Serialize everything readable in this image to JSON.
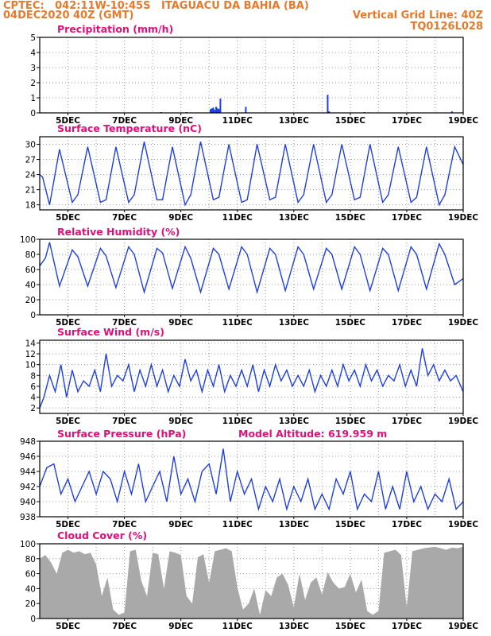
{
  "header": {
    "line1": "CPTEC:   042:11W-10:45S   ITAGUACU DA BAHIA (BA)",
    "line2": "04DEC2020 40Z (GMT)",
    "grid_note": "Vertical Grid Line: 40Z",
    "model_code": "TQ0126L028"
  },
  "colors": {
    "header": "#e8792b",
    "title": "#e0107a",
    "series": "#1f3fe0",
    "cloud": "#a9a9a9",
    "grid": "#9a9a9a"
  },
  "chart_data": [
    {
      "type": "bar",
      "title": "Precipitation (mm/h)",
      "ylim": [
        0,
        5
      ],
      "yticks": [
        0,
        1,
        2,
        3,
        4,
        5
      ],
      "xticks": [
        "5DEC",
        "7DEC",
        "9DEC",
        "11DEC",
        "13DEC",
        "15DEC",
        "17DEC",
        "19DEC"
      ],
      "xlim_days": [
        4.0,
        19.0
      ],
      "series": [
        {
          "x": [
            8.3,
            9.2,
            10.05,
            10.1,
            10.15,
            10.2,
            10.25,
            10.3,
            10.35,
            10.4,
            11.3,
            14.2,
            14.25,
            15.5,
            18.6
          ],
          "values": [
            0.05,
            0.05,
            0.25,
            0.3,
            0.35,
            0.2,
            0.4,
            0.3,
            0.25,
            0.95,
            0.4,
            1.2,
            0.1,
            0.05,
            0.1
          ]
        }
      ]
    },
    {
      "type": "line",
      "title": "Surface Temperature (nC)",
      "ylim": [
        17,
        31.5
      ],
      "yticks": [
        18,
        21,
        24,
        27,
        30
      ],
      "xticks": [
        "5DEC",
        "7DEC",
        "9DEC",
        "11DEC",
        "13DEC",
        "15DEC",
        "17DEC",
        "19DEC"
      ],
      "xlim_days": [
        4.0,
        19.0
      ],
      "series": [
        {
          "x": [
            4.0,
            4.1,
            4.35,
            4.7,
            5.15,
            5.35,
            5.7,
            6.15,
            6.35,
            6.7,
            7.15,
            7.35,
            7.7,
            8.15,
            8.35,
            8.7,
            9.15,
            9.35,
            9.7,
            10.15,
            10.35,
            10.7,
            11.15,
            11.35,
            11.7,
            12.15,
            12.35,
            12.7,
            13.15,
            13.35,
            13.7,
            14.15,
            14.35,
            14.7,
            15.15,
            15.35,
            15.7,
            16.15,
            16.35,
            16.7,
            17.15,
            17.35,
            17.7,
            18.15,
            18.35,
            18.7,
            19.0
          ],
          "values": [
            24,
            23.5,
            18,
            29,
            18.5,
            20,
            29.5,
            18.5,
            19,
            29.5,
            18.5,
            20,
            30.5,
            19,
            19,
            29.5,
            18,
            20,
            30.5,
            19,
            19.5,
            30,
            18.5,
            19,
            30,
            19,
            19.5,
            30,
            18.5,
            20,
            30,
            18.5,
            20,
            30,
            19,
            19.5,
            30,
            18.5,
            20,
            29.5,
            18.5,
            19.5,
            29.5,
            18,
            20,
            29.5,
            26
          ]
        }
      ]
    },
    {
      "type": "line",
      "title": "Relative Humidity (%)",
      "ylim": [
        0,
        100
      ],
      "yticks": [
        0,
        20,
        40,
        60,
        80,
        100
      ],
      "xticks": [
        "5DEC",
        "7DEC",
        "9DEC",
        "11DEC",
        "13DEC",
        "15DEC",
        "17DEC",
        "19DEC"
      ],
      "xlim_days": [
        4.0,
        19.0
      ],
      "series": [
        {
          "x": [
            4.0,
            4.2,
            4.35,
            4.7,
            5.15,
            5.35,
            5.7,
            6.15,
            6.35,
            6.7,
            7.15,
            7.35,
            7.7,
            8.15,
            8.35,
            8.7,
            9.15,
            9.35,
            9.7,
            10.15,
            10.35,
            10.7,
            11.15,
            11.35,
            11.7,
            12.15,
            12.35,
            12.7,
            13.15,
            13.35,
            13.7,
            14.15,
            14.35,
            14.7,
            15.15,
            15.35,
            15.7,
            16.15,
            16.35,
            16.7,
            17.15,
            17.35,
            17.7,
            18.15,
            18.35,
            18.7,
            19.0
          ],
          "values": [
            65,
            75,
            96,
            38,
            86,
            77,
            38,
            88,
            78,
            36,
            90,
            80,
            30,
            88,
            82,
            35,
            90,
            75,
            30,
            88,
            80,
            34,
            90,
            80,
            30,
            88,
            80,
            32,
            90,
            80,
            34,
            88,
            80,
            34,
            90,
            80,
            32,
            88,
            80,
            32,
            90,
            80,
            34,
            94,
            80,
            40,
            48
          ]
        }
      ]
    },
    {
      "type": "line",
      "title": "Surface Wind (m/s)",
      "ylim": [
        1,
        14.5
      ],
      "yticks": [
        2,
        4,
        6,
        8,
        10,
        12,
        14
      ],
      "xticks": [
        "5DEC",
        "7DEC",
        "9DEC",
        "11DEC",
        "13DEC",
        "15DEC",
        "17DEC",
        "19DEC"
      ],
      "xlim_days": [
        4.0,
        19.0
      ],
      "series": [
        {
          "x": [
            4.0,
            4.15,
            4.35,
            4.55,
            4.75,
            4.95,
            5.15,
            5.35,
            5.55,
            5.75,
            5.95,
            6.15,
            6.35,
            6.55,
            6.75,
            6.95,
            7.15,
            7.35,
            7.55,
            7.75,
            7.95,
            8.15,
            8.35,
            8.55,
            8.75,
            8.95,
            9.15,
            9.35,
            9.55,
            9.75,
            9.95,
            10.15,
            10.35,
            10.55,
            10.75,
            10.95,
            11.15,
            11.35,
            11.55,
            11.75,
            11.95,
            12.15,
            12.35,
            12.55,
            12.75,
            12.95,
            13.15,
            13.35,
            13.55,
            13.75,
            13.95,
            14.15,
            14.35,
            14.55,
            14.75,
            14.95,
            15.15,
            15.35,
            15.55,
            15.75,
            15.95,
            16.15,
            16.35,
            16.55,
            16.75,
            16.95,
            17.15,
            17.35,
            17.55,
            17.75,
            17.95,
            18.15,
            18.35,
            18.55,
            18.75,
            19.0
          ],
          "values": [
            2,
            4,
            8,
            5,
            10,
            4,
            9,
            5,
            7,
            6,
            9,
            5,
            12,
            6,
            8,
            7,
            10,
            5,
            9,
            6,
            10,
            6,
            9,
            5,
            8,
            6,
            11,
            7,
            9,
            5,
            9,
            6,
            10,
            5,
            8,
            6,
            9,
            6,
            10,
            5,
            9,
            6,
            10,
            7,
            9,
            6,
            8,
            6,
            9,
            5,
            8,
            6,
            9,
            6,
            10,
            7,
            9,
            6,
            10,
            7,
            9,
            6,
            8,
            7,
            10,
            6,
            9,
            6,
            13,
            8,
            10,
            7,
            9,
            7,
            8,
            5
          ]
        }
      ]
    },
    {
      "type": "line",
      "title": "Surface Pressure (hPa)",
      "note": "Model Altitude: 619.959  m",
      "ylim": [
        938,
        948
      ],
      "yticks": [
        938,
        940,
        942,
        944,
        946,
        948
      ],
      "xticks": [
        "5DEC",
        "7DEC",
        "9DEC",
        "11DEC",
        "13DEC",
        "15DEC",
        "17DEC",
        "19DEC"
      ],
      "xlim_days": [
        4.0,
        19.0
      ],
      "series": [
        {
          "x": [
            4.0,
            4.25,
            4.5,
            4.75,
            5.0,
            5.25,
            5.5,
            5.75,
            6.0,
            6.25,
            6.5,
            6.75,
            7.0,
            7.25,
            7.5,
            7.75,
            8.0,
            8.25,
            8.5,
            8.75,
            9.0,
            9.25,
            9.5,
            9.75,
            10.0,
            10.25,
            10.5,
            10.75,
            11.0,
            11.25,
            11.5,
            11.75,
            12.0,
            12.25,
            12.5,
            12.75,
            13.0,
            13.25,
            13.5,
            13.75,
            14.0,
            14.25,
            14.5,
            14.75,
            15.0,
            15.25,
            15.5,
            15.75,
            16.0,
            16.25,
            16.5,
            16.75,
            17.0,
            17.25,
            17.5,
            17.75,
            18.0,
            18.25,
            18.5,
            18.75,
            19.0
          ],
          "values": [
            942,
            944.5,
            945,
            941,
            943,
            940,
            942,
            944,
            941,
            944,
            943,
            940,
            944,
            941,
            945,
            940,
            942,
            944,
            940,
            946,
            941,
            943,
            940,
            944,
            945,
            941,
            947,
            940,
            944,
            941,
            943,
            939,
            942,
            940,
            943,
            939,
            942,
            940,
            943,
            939,
            941,
            939,
            943,
            941,
            944,
            939,
            941,
            940,
            944,
            939,
            942,
            939,
            944,
            940,
            942,
            939,
            941,
            940,
            943,
            939,
            940
          ]
        }
      ]
    },
    {
      "type": "area",
      "title": "Cloud Cover (%)",
      "ylim": [
        0,
        100
      ],
      "yticks": [
        0,
        20,
        40,
        60,
        80,
        100
      ],
      "xticks": [
        "5DEC",
        "7DEC",
        "9DEC",
        "11DEC",
        "13DEC",
        "15DEC",
        "17DEC",
        "19DEC"
      ],
      "xlim_days": [
        4.0,
        19.0
      ],
      "series": [
        {
          "x": [
            4.0,
            4.2,
            4.4,
            4.6,
            4.8,
            5.0,
            5.2,
            5.4,
            5.6,
            5.8,
            6.0,
            6.2,
            6.4,
            6.6,
            6.8,
            7.0,
            7.2,
            7.4,
            7.6,
            7.8,
            8.0,
            8.2,
            8.4,
            8.6,
            8.8,
            9.0,
            9.2,
            9.4,
            9.6,
            9.8,
            10.0,
            10.2,
            10.4,
            10.6,
            10.8,
            11.0,
            11.2,
            11.4,
            11.6,
            11.8,
            12.0,
            12.2,
            12.4,
            12.6,
            12.8,
            13.0,
            13.2,
            13.4,
            13.6,
            13.8,
            14.0,
            14.2,
            14.4,
            14.6,
            14.8,
            15.0,
            15.2,
            15.4,
            15.6,
            15.8,
            16.0,
            16.2,
            16.4,
            16.6,
            16.8,
            17.0,
            17.2,
            17.4,
            17.6,
            17.8,
            18.0,
            18.2,
            18.4,
            18.6,
            18.8,
            19.0
          ],
          "values": [
            80,
            85,
            75,
            60,
            88,
            92,
            88,
            90,
            86,
            88,
            72,
            30,
            55,
            12,
            5,
            8,
            90,
            92,
            50,
            30,
            88,
            86,
            40,
            90,
            88,
            85,
            30,
            20,
            82,
            86,
            48,
            90,
            92,
            94,
            90,
            42,
            12,
            20,
            40,
            5,
            38,
            30,
            55,
            60,
            45,
            15,
            60,
            25,
            48,
            55,
            32,
            62,
            48,
            40,
            42,
            60,
            35,
            52,
            10,
            5,
            10,
            88,
            90,
            92,
            85,
            15,
            90,
            92,
            94,
            95,
            96,
            94,
            92,
            95,
            94,
            96
          ]
        }
      ]
    }
  ]
}
